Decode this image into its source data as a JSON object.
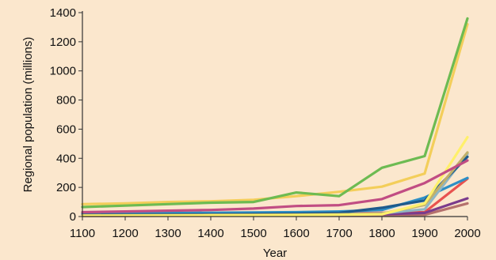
{
  "chart_data": {
    "type": "line",
    "title": "",
    "xlabel": "Year",
    "ylabel": "Regional population (millions)",
    "xlim": [
      1100,
      2000
    ],
    "ylim": [
      0,
      1400
    ],
    "x_ticks": [
      1100,
      1200,
      1300,
      1400,
      1500,
      1600,
      1700,
      1800,
      1900,
      2000
    ],
    "y_ticks": [
      0,
      200,
      400,
      600,
      800,
      1000,
      1200,
      1400
    ],
    "legend": "none",
    "grid": false,
    "x": [
      1100,
      1200,
      1300,
      1400,
      1500,
      1600,
      1700,
      1800,
      1900,
      2000
    ],
    "series": [
      {
        "color": "#e8524f",
        "values": [
          10,
          12,
          14,
          16,
          18,
          20,
          22,
          25,
          30,
          260
        ]
      },
      {
        "color": "#b5716d",
        "values": [
          4,
          5,
          6,
          6,
          7,
          8,
          9,
          10,
          12,
          90
        ]
      },
      {
        "color": "#7b3b8c",
        "values": [
          5,
          6,
          7,
          8,
          9,
          10,
          12,
          15,
          25,
          125
        ]
      },
      {
        "color": "#2d8fc5",
        "values": [
          20,
          22,
          24,
          26,
          28,
          30,
          35,
          45,
          130,
          265
        ]
      },
      {
        "color": "#8fb6c4",
        "values": [
          10,
          11,
          12,
          13,
          14,
          15,
          18,
          22,
          50,
          430
        ]
      },
      {
        "color": "#1e5a8c",
        "values": [
          12,
          13,
          14,
          15,
          18,
          20,
          25,
          60,
          110,
          410
        ]
      },
      {
        "color": "#c1b06a",
        "values": [
          8,
          9,
          10,
          11,
          12,
          13,
          15,
          20,
          80,
          440
        ]
      },
      {
        "color": "#fff06a",
        "values": [
          5,
          6,
          7,
          8,
          9,
          10,
          12,
          15,
          90,
          545
        ]
      },
      {
        "color": "#c14d83",
        "values": [
          30,
          35,
          40,
          45,
          55,
          72,
          78,
          120,
          230,
          385
        ]
      },
      {
        "color": "#f3ce5a",
        "values": [
          85,
          90,
          100,
          105,
          115,
          140,
          170,
          205,
          295,
          1320
        ]
      },
      {
        "color": "#6dbb52",
        "values": [
          65,
          75,
          85,
          95,
          100,
          165,
          140,
          335,
          415,
          1360
        ]
      }
    ]
  }
}
